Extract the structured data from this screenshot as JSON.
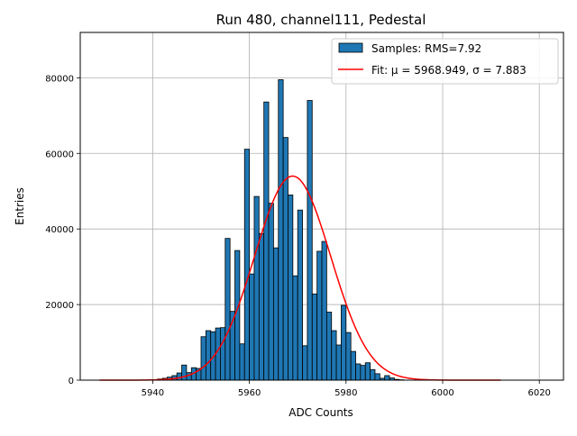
{
  "chart_data": {
    "type": "bar",
    "title": "Run 480, channel111, Pedestal",
    "xlabel": "ADC Counts",
    "ylabel": "Entries",
    "xlim": [
      5925,
      6025
    ],
    "ylim": [
      0,
      92000
    ],
    "xticks": [
      "5940",
      "5960",
      "5980",
      "6000",
      "6020"
    ],
    "yticks": [
      "0",
      "20000",
      "40000",
      "60000",
      "80000"
    ],
    "grid": true,
    "legend_position": "top-right",
    "bins": {
      "start": 5941,
      "width": 1
    },
    "series": [
      {
        "name": "Samples: RMS=7.92",
        "kind": "histogram",
        "color": "#1f77b4",
        "values": [
          300,
          500,
          800,
          1200,
          1900,
          4000,
          2000,
          3300,
          3100,
          11500,
          13100,
          12800,
          13800,
          13900,
          37500,
          18200,
          34300,
          9600,
          61100,
          28100,
          48600,
          38800,
          73600,
          46800,
          35000,
          79500,
          64200,
          49000,
          27600,
          45000,
          9100,
          74000,
          22800,
          34100,
          36700,
          18000,
          13100,
          9300,
          19800,
          12600,
          7600,
          4300,
          3900,
          4600,
          2800,
          1700,
          500,
          1200,
          600,
          200,
          100
        ]
      },
      {
        "name": "Fit: μ = 5968.949, σ = 7.883",
        "kind": "gaussian",
        "color": "#ff0000",
        "mu": 5968.949,
        "sigma": 7.883,
        "amplitude": 54000,
        "x_range": [
          5929,
          6012
        ]
      }
    ]
  }
}
